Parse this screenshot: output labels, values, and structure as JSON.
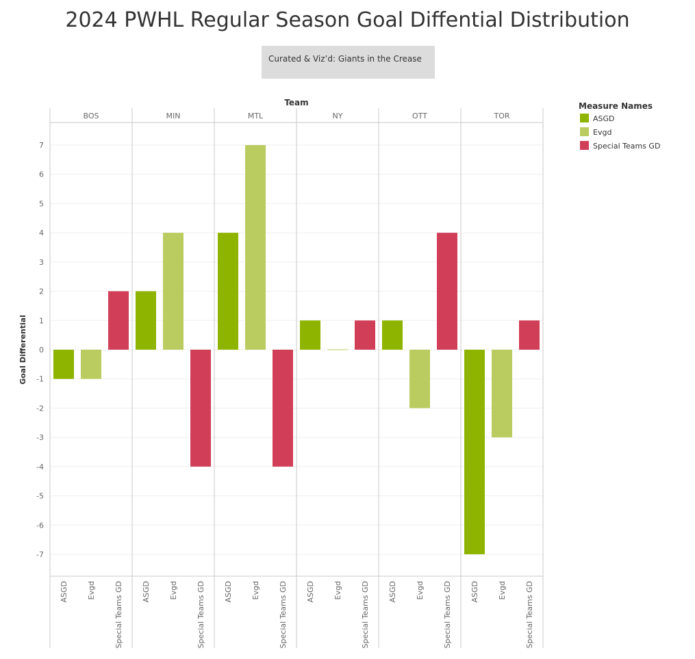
{
  "title": "2024 PWHL Regular Season Goal Diffential Distribution",
  "caption": "Curated & Viz’d: Giants in the Crease",
  "chart_data": {
    "type": "bar",
    "column_header": "Team",
    "ylabel": "Goal Differential",
    "ylim": [
      -7.75,
      7.75
    ],
    "y_ticks": [
      7,
      6,
      5,
      4,
      3,
      2,
      1,
      0,
      -1,
      -2,
      -3,
      -4,
      -5,
      -6,
      -7
    ],
    "legend_title": "Measure Names",
    "legend_position": "right",
    "grid": true,
    "measures": [
      "ASGD",
      "Evgd",
      "Special Teams GD"
    ],
    "colors": {
      "ASGD": "#8fb400",
      "Evgd": "#bacc5f",
      "Special Teams GD": "#d13e58"
    },
    "teams": [
      {
        "name": "BOS",
        "values": {
          "ASGD": -1,
          "Evgd": -1,
          "Special Teams GD": 2
        }
      },
      {
        "name": "MIN",
        "values": {
          "ASGD": 2,
          "Evgd": 4,
          "Special Teams GD": -4
        }
      },
      {
        "name": "MTL",
        "values": {
          "ASGD": 4,
          "Evgd": 7,
          "Special Teams GD": -4
        }
      },
      {
        "name": "NY",
        "values": {
          "ASGD": 1,
          "Evgd": 0,
          "Special Teams GD": 1
        }
      },
      {
        "name": "OTT",
        "values": {
          "ASGD": 1,
          "Evgd": -2,
          "Special Teams GD": 4
        }
      },
      {
        "name": "TOR",
        "values": {
          "ASGD": -7,
          "Evgd": -3,
          "Special Teams GD": 1
        }
      }
    ]
  }
}
